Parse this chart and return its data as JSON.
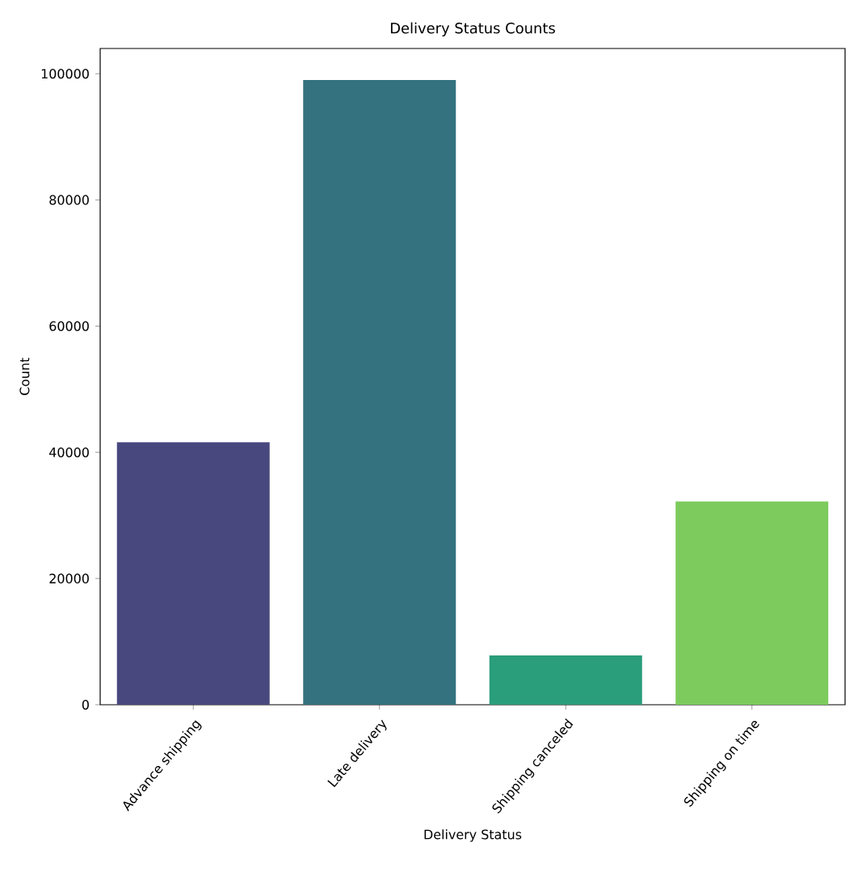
{
  "chart_data": {
    "type": "bar",
    "title": "Delivery Status Counts",
    "xlabel": "Delivery Status",
    "ylabel": "Count",
    "categories": [
      "Advance shipping",
      "Late delivery",
      "Shipping canceled",
      "Shipping on time"
    ],
    "values": [
      41600,
      99000,
      7800,
      32200
    ],
    "colors": [
      "#48487e",
      "#34727f",
      "#2a9d7b",
      "#7ccb5c"
    ],
    "ylim": [
      0,
      104000
    ],
    "yticks": [
      0,
      20000,
      40000,
      60000,
      80000,
      100000
    ]
  }
}
